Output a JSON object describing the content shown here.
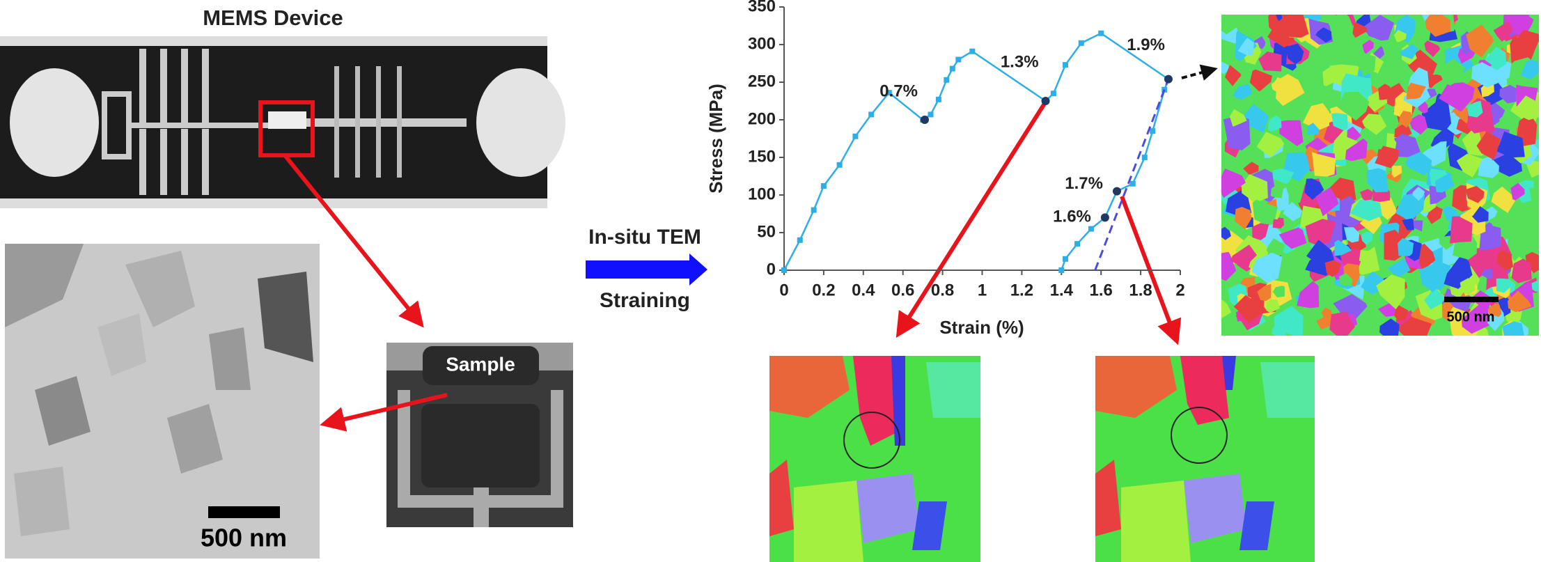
{
  "figure": {
    "mems_title": "MEMS Device",
    "sample_label": "Sample",
    "scale_bar_tem": "500 nm",
    "scale_bar_map": "500 nm",
    "arrow_top": "In-situ TEM",
    "arrow_bottom": "Straining"
  },
  "chart_data": {
    "type": "line",
    "x_label": "Strain (%)",
    "y_label": "Stress (MPa)",
    "xlim": [
      0,
      2
    ],
    "xticks": [
      0,
      0.2,
      0.4,
      0.6,
      0.8,
      1,
      1.2,
      1.4,
      1.6,
      1.8,
      2
    ],
    "ylim": [
      0,
      350
    ],
    "yticks": [
      0,
      50,
      100,
      150,
      200,
      250,
      300,
      350
    ],
    "grid": false,
    "series": [
      {
        "color": "#2eaee6",
        "markers": true,
        "dashed": false,
        "x": [
          0,
          0.08,
          0.15,
          0.2,
          0.28,
          0.36,
          0.44,
          0.53,
          0.7,
          0.74,
          0.78,
          0.82,
          0.85,
          0.88,
          0.95,
          1.32,
          1.36,
          1.42,
          1.5,
          1.6,
          1.94,
          1.92,
          1.86,
          1.82,
          1.76,
          1.68,
          1.62,
          1.55,
          1.48,
          1.42,
          1.4
        ],
        "values": [
          0,
          40,
          80,
          112,
          140,
          178,
          207,
          236,
          200,
          207,
          227,
          253,
          268,
          280,
          291,
          225,
          235,
          273,
          302,
          315,
          254,
          240,
          185,
          150,
          115,
          105,
          70,
          55,
          35,
          15,
          0
        ]
      },
      {
        "color": "#4b4bdc",
        "markers": false,
        "dashed": true,
        "x": [
          1.57,
          1.94
        ],
        "values": [
          0,
          254
        ]
      }
    ],
    "highlight_points": {
      "color": "#1f3864",
      "x": [
        0.71,
        1.32,
        1.94,
        1.68,
        1.62
      ],
      "values": [
        200,
        225,
        254,
        105,
        70
      ],
      "value_labels": [
        "0.7%",
        "1.3%",
        "1.9%",
        "1.7%",
        "1.6%"
      ]
    }
  }
}
